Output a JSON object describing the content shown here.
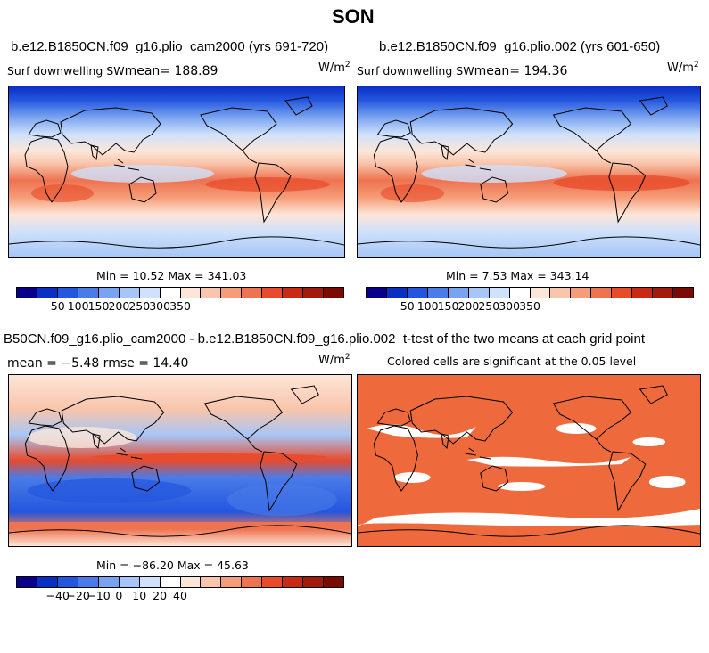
{
  "title": "SON",
  "panels": {
    "top_left": {
      "case": "b.e12.B1850CN.f09_g16.plio_cam2000 (yrs 691-720)",
      "variable": "Surf downwelling SW",
      "mean_label": "mean= 188.89",
      "units": "W/m",
      "units_sup": "2",
      "minmax": "Min =  10.52 Max = 341.03"
    },
    "top_right": {
      "case": "b.e12.B1850CN.f09_g16.plio.002 (yrs 601-650)",
      "variable": "Surf downwelling SW",
      "mean_label": "mean= 194.36",
      "units": "W/m",
      "units_sup": "2",
      "minmax": "Min =   7.53 Max = 343.14"
    },
    "bottom_left": {
      "case": "B50CN.f09_g16.plio_cam2000 - b.e12.B1850CN.f09_g16.plio.002",
      "stats": "mean =  −5.48    rmse =  14.40",
      "units": "W/m",
      "units_sup": "2",
      "minmax": "Min = −86.20 Max =  45.63"
    },
    "bottom_right": {
      "title": "t-test of the two means at each grid point",
      "subtitle": "Colored cells are significant at the 0.05 level"
    }
  },
  "colorbars": {
    "absolute": {
      "ticks": [
        "50",
        "100",
        "150",
        "200",
        "250",
        "300",
        "350"
      ],
      "colors": [
        "#08008a",
        "#0a2fc4",
        "#2356de",
        "#4a7be8",
        "#78a3f0",
        "#a6c6f7",
        "#cfe1fb",
        "#ffffff",
        "#fde6d8",
        "#f9c5ab",
        "#f59d78",
        "#ee7350",
        "#e84a2a",
        "#c82a14",
        "#a11a0c",
        "#7b0a04"
      ]
    },
    "difference": {
      "ticks": [
        "−40",
        "−20",
        "−10",
        "0",
        "10",
        "20",
        "40"
      ],
      "colors": [
        "#08008a",
        "#0a2fc4",
        "#2356de",
        "#4a7be8",
        "#78a3f0",
        "#a6c6f7",
        "#cfe1fb",
        "#ffffff",
        "#fde6d8",
        "#f9c5ab",
        "#f59d78",
        "#ee7350",
        "#e84a2a",
        "#c82a14",
        "#a11a0c",
        "#7b0a04"
      ]
    }
  },
  "chart_data": [
    {
      "type": "heatmap",
      "title": "b.e12.B1850CN.f09_g16.plio_cam2000 (yrs 691-720)",
      "variable": "Surf downwelling SW",
      "mean": 188.89,
      "min": 10.52,
      "max": 341.03,
      "units": "W/m2",
      "colorbar_ticks": [
        50,
        100,
        150,
        200,
        250,
        300,
        350
      ],
      "map": "global lat-lon"
    },
    {
      "type": "heatmap",
      "title": "b.e12.B1850CN.f09_g16.plio.002 (yrs 601-650)",
      "variable": "Surf downwelling SW",
      "mean": 194.36,
      "min": 7.53,
      "max": 343.14,
      "units": "W/m2",
      "colorbar_ticks": [
        50,
        100,
        150,
        200,
        250,
        300,
        350
      ],
      "map": "global lat-lon"
    },
    {
      "type": "heatmap",
      "title": "B50CN.f09_g16.plio_cam2000 - b.e12.B1850CN.f09_g16.plio.002",
      "mean": -5.48,
      "rmse": 14.4,
      "min": -86.2,
      "max": 45.63,
      "units": "W/m2",
      "colorbar_ticks": [
        -40,
        -20,
        -10,
        0,
        10,
        20,
        40
      ],
      "map": "global lat-lon"
    },
    {
      "type": "heatmap",
      "title": "t-test of the two means at each grid point",
      "subtitle": "Colored cells are significant at the 0.05 level",
      "map": "global lat-lon"
    }
  ]
}
